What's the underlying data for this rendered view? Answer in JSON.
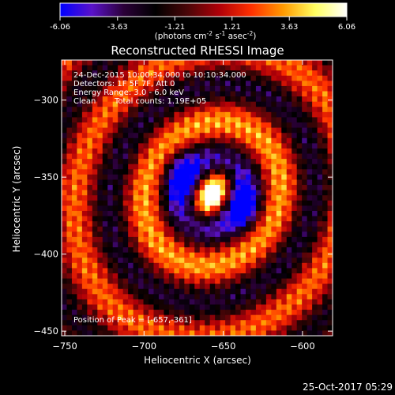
{
  "chart_data": {
    "type": "heatmap",
    "title": "Reconstructed RHESSI Image",
    "xlabel": "Heliocentric X (arcsec)",
    "ylabel": "Heliocentric Y (arcsec)",
    "x_ticks": [
      -750,
      -700,
      -650,
      -600
    ],
    "y_ticks": [
      -300,
      -350,
      -400,
      -450
    ],
    "xlim": [
      -752,
      -581
    ],
    "ylim": [
      -453,
      -274
    ],
    "colorbar": {
      "min": -6.06,
      "max": 6.06,
      "tick_labels": [
        "-6.06",
        "-3.63",
        "-1.21",
        "1.21",
        "3.63",
        "6.06"
      ],
      "unit_main": "(photons cm",
      "unit_exp1": "-2",
      "unit_mid1": " s",
      "unit_exp2": "-1",
      "unit_mid2": " asec",
      "unit_exp3": "-2",
      "unit_end": ")",
      "colors": [
        "#0000ff",
        "#5a12c9",
        "#2b0038",
        "#000000",
        "#4a0608",
        "#b00008",
        "#ff3000",
        "#ff9a00",
        "#ffff60",
        "#ffffff"
      ]
    },
    "annotations": {
      "line1": "24-Dec-2015 10:00:34.000 to 10:10:34.000",
      "line2": "Detectors: 1F 5F 7F, Att 0",
      "line3": "Energy Range: 3.0 - 6.0 keV",
      "line4_label": "Clean",
      "line4_counts": "Total counts: 1.19E+05",
      "peak_text": "Position of Peak = [-657,-361]"
    },
    "peak": {
      "x": -657,
      "y": -361,
      "peak_value": 6.06
    }
  },
  "footer": {
    "timestamp": "25-Oct-2017 05:29"
  }
}
